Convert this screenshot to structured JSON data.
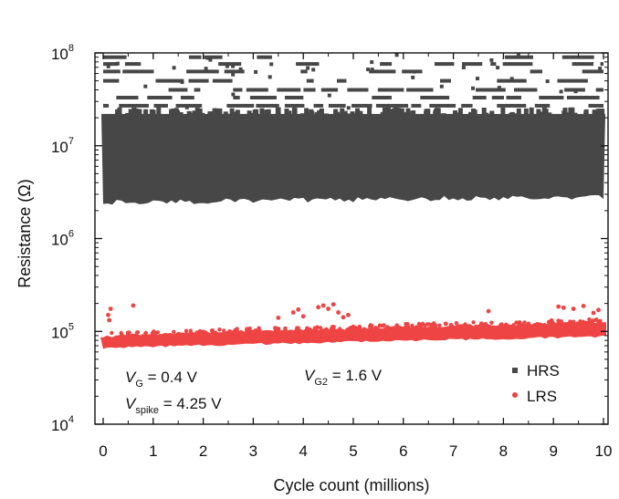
{
  "chart_data": {
    "type": "scatter",
    "xlabel": "Cycle count (millions)",
    "ylabel": "Resistance (Ω)",
    "xlim": [
      0,
      10
    ],
    "ylim": [
      10000,
      100000000
    ],
    "yscale": "log",
    "x_ticks": [
      "0",
      "1",
      "2",
      "3",
      "4",
      "5",
      "6",
      "7",
      "8",
      "9",
      "10"
    ],
    "y_ticks": [
      {
        "value": 10000,
        "base": "10",
        "exp": "4"
      },
      {
        "value": 100000,
        "base": "10",
        "exp": "5"
      },
      {
        "value": 1000000,
        "base": "10",
        "exp": "6"
      },
      {
        "value": 10000000,
        "base": "10",
        "exp": "7"
      },
      {
        "value": 100000000,
        "base": "10",
        "exp": "8"
      }
    ],
    "grid": false,
    "legend_position": "bottom-right",
    "series": [
      {
        "name": "HRS",
        "color": "#474747",
        "marker": "square",
        "band_lower_start": 2600000,
        "band_lower_end": 3000000,
        "band_upper": 22000000,
        "quantized_levels": [
          27000000,
          33000000,
          40000000,
          50000000,
          63000000,
          76000000,
          90000000
        ]
      },
      {
        "name": "LRS",
        "color": "#ef4444",
        "marker": "circle",
        "band_lower_start": 68000,
        "band_lower_end": 90000,
        "band_upper_start": 88000,
        "band_upper_end": 125000,
        "outliers": [
          {
            "x": 0.1,
            "y": 150000
          },
          {
            "x": 0.15,
            "y": 175000
          },
          {
            "x": 0.12,
            "y": 132000
          },
          {
            "x": 0.6,
            "y": 190000
          },
          {
            "x": 3.5,
            "y": 140000
          },
          {
            "x": 3.8,
            "y": 160000
          },
          {
            "x": 3.9,
            "y": 172000
          },
          {
            "x": 4.0,
            "y": 145000
          },
          {
            "x": 4.3,
            "y": 182000
          },
          {
            "x": 4.4,
            "y": 190000
          },
          {
            "x": 4.5,
            "y": 175000
          },
          {
            "x": 4.6,
            "y": 195000
          },
          {
            "x": 4.7,
            "y": 160000
          },
          {
            "x": 4.8,
            "y": 142000
          },
          {
            "x": 4.9,
            "y": 150000
          },
          {
            "x": 7.7,
            "y": 165000
          },
          {
            "x": 9.1,
            "y": 185000
          },
          {
            "x": 9.2,
            "y": 180000
          },
          {
            "x": 9.4,
            "y": 175000
          },
          {
            "x": 9.6,
            "y": 188000
          },
          {
            "x": 9.8,
            "y": 158000
          },
          {
            "x": 9.9,
            "y": 170000
          }
        ]
      }
    ],
    "annotations": [
      {
        "main": "V",
        "sub": "G",
        "rest": " = 0.4 V"
      },
      {
        "main": "V",
        "sub": "spike",
        "rest": " = 4.25 V"
      },
      {
        "main": "V",
        "sub": "G2",
        "rest": " = 1.6 V"
      }
    ]
  }
}
